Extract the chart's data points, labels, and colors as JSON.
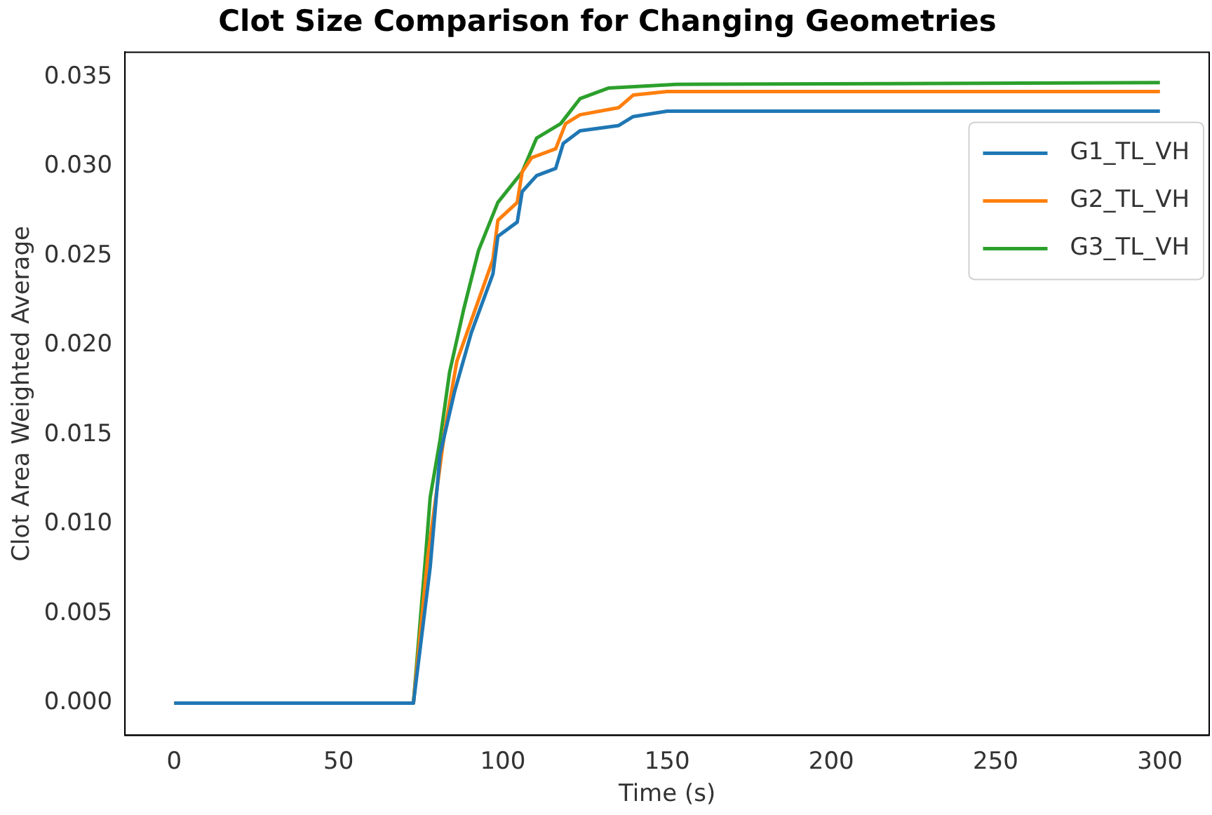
{
  "chart_data": {
    "type": "line",
    "title": "Clot Size Comparison for Changing Geometries",
    "xlabel": "Time (s)",
    "ylabel": "Clot Area Weighted Average",
    "xlim": [
      -15,
      315
    ],
    "xticks": [
      0,
      50,
      100,
      150,
      200,
      250,
      300
    ],
    "ylim": [
      -0.0018,
      0.0364
    ],
    "yticks": [
      {
        "value": 0,
        "label": "0.000"
      },
      0.005,
      {
        "value": 0.01,
        "label": "0.010"
      },
      0.015,
      {
        "value": 0.02,
        "label": "0.020"
      },
      0.025,
      {
        "value": 0.03,
        "label": "0.030"
      },
      0.035
    ],
    "grid": false,
    "legend": "top right",
    "marker": "none",
    "line_style": "solid",
    "series": [
      {
        "name": "G1_TL_VH",
        "color": "#1f77b4",
        "x": [
          0,
          72.8,
          77.9,
          80.9,
          85.3,
          90.4,
          97.0,
          98.5,
          104.4,
          105.9,
          110.3,
          116.1,
          118.4,
          123.5,
          135.3,
          139.7,
          150,
          300
        ],
        "values": [
          0,
          0,
          0.0076,
          0.0139,
          0.0174,
          0.0207,
          0.024,
          0.0261,
          0.0269,
          0.0286,
          0.0295,
          0.0299,
          0.0313,
          0.032,
          0.0323,
          0.0328,
          0.0331,
          0.0331
        ]
      },
      {
        "name": "G2_TL_VH",
        "color": "#ff7f0e",
        "x": [
          0,
          72.8,
          77.2,
          79.4,
          82.4,
          86.0,
          91.2,
          97.0,
          98.5,
          104.4,
          105.9,
          108.8,
          116.1,
          119.1,
          123.5,
          135.3,
          139.7,
          150,
          300
        ],
        "values": [
          0,
          0,
          0.0082,
          0.0112,
          0.0153,
          0.0191,
          0.0218,
          0.0248,
          0.027,
          0.028,
          0.0297,
          0.0305,
          0.031,
          0.0324,
          0.0329,
          0.0333,
          0.034,
          0.0342,
          0.0342
        ]
      },
      {
        "name": "G3_TL_VH",
        "color": "#2ca02c",
        "x": [
          0,
          72.8,
          76.5,
          77.9,
          80.9,
          83.8,
          88.2,
          92.6,
          98.5,
          105.9,
          110.3,
          117.6,
          123.5,
          132.3,
          152.9,
          300
        ],
        "values": [
          0,
          0,
          0.0082,
          0.0115,
          0.0147,
          0.0185,
          0.0221,
          0.0253,
          0.028,
          0.0297,
          0.0316,
          0.0324,
          0.0338,
          0.0344,
          0.0346,
          0.0347
        ]
      }
    ]
  }
}
